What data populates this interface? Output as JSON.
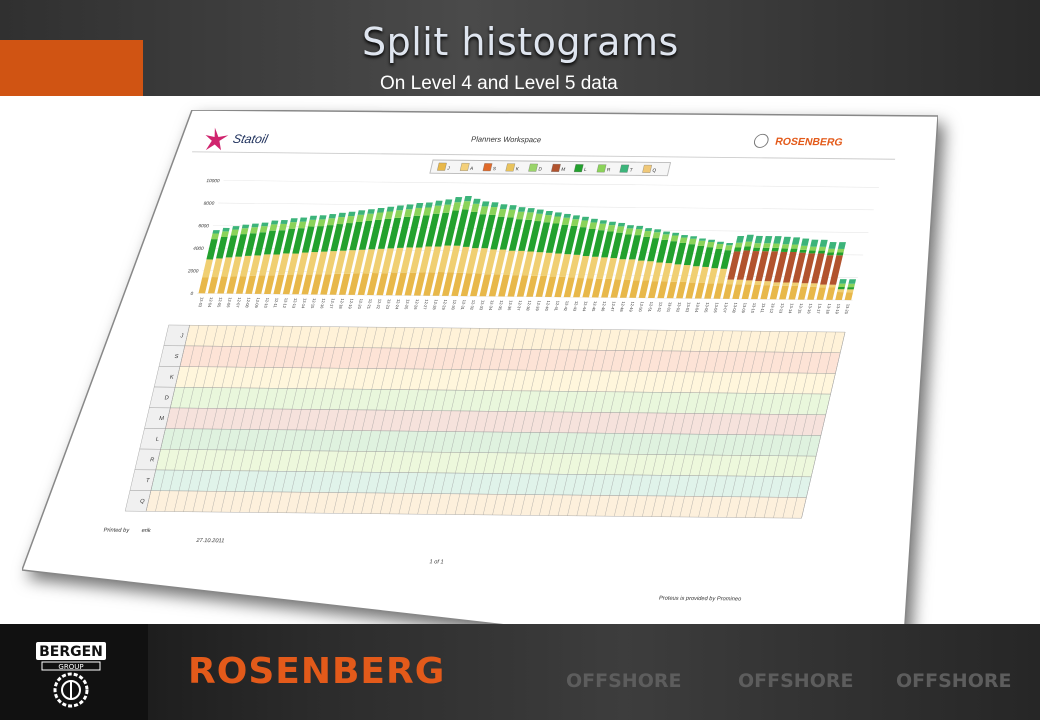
{
  "slide": {
    "title": "Split histograms",
    "subtitle": "On Level 4 and Level 5 data"
  },
  "sheet": {
    "company_left": "Statoil",
    "header_title": "Planners Workspace",
    "company_right": "ROSENBERG",
    "legend": [
      {
        "key": "J",
        "color": "#e8b84a"
      },
      {
        "key": "A",
        "color": "#f4d07a"
      },
      {
        "key": "S",
        "color": "#e06a2a"
      },
      {
        "key": "K",
        "color": "#e9c35c"
      },
      {
        "key": "D",
        "color": "#9ad46a"
      },
      {
        "key": "M",
        "color": "#b2532e"
      },
      {
        "key": "L",
        "color": "#23a12e"
      },
      {
        "key": "R",
        "color": "#8bd35a"
      },
      {
        "key": "T",
        "color": "#3cb47a"
      },
      {
        "key": "Q",
        "color": "#f0c878"
      }
    ],
    "y_ticks": [
      "10000",
      "8000",
      "6000",
      "4000",
      "2000",
      "0"
    ],
    "row_labels": [
      "J",
      "S",
      "K",
      "D",
      "M",
      "L",
      "R",
      "T",
      "Q"
    ],
    "printed_by_label": "Printed by",
    "printed_by_value": "erik",
    "print_date": "27.10.2011",
    "page_label": "1 of 1",
    "footer_note": "Proteus is provided by Promineo"
  },
  "chart_data": {
    "type": "bar",
    "stacked": true,
    "title": "",
    "xlabel": "",
    "ylabel": "",
    "ylim": [
      0,
      10000
    ],
    "categories": [
      "12-03",
      "12-04",
      "12-05",
      "12-06",
      "12-07",
      "12-08",
      "12-09",
      "12-10",
      "12-11",
      "12-12",
      "12-13",
      "12-14",
      "12-15",
      "12-16",
      "12-17",
      "12-18",
      "12-19",
      "12-20",
      "12-21",
      "12-22",
      "12-23",
      "12-24",
      "12-25",
      "12-26",
      "12-27",
      "12-28",
      "12-29",
      "12-30",
      "12-31",
      "12-32",
      "12-33",
      "12-34",
      "12-35",
      "12-36",
      "12-37",
      "12-38",
      "12-39",
      "12-40",
      "12-41",
      "12-42",
      "12-43",
      "12-44",
      "12-45",
      "12-46",
      "12-47",
      "12-48",
      "12-49",
      "12-50",
      "12-51",
      "12-52",
      "13-01",
      "13-02",
      "13-03",
      "13-04",
      "13-05",
      "13-06",
      "13-07",
      "13-08",
      "13-09",
      "13-10",
      "13-11",
      "13-12",
      "13-13",
      "13-14",
      "13-15",
      "13-16",
      "13-17",
      "13-18",
      "13-19",
      "13-20"
    ],
    "series": [
      {
        "name": "J",
        "color": "#e8b84a",
        "values": [
          1400,
          1450,
          1500,
          1520,
          1550,
          1600,
          1650,
          1650,
          1700,
          1700,
          1750,
          1750,
          1800,
          1800,
          1850,
          1850,
          1900,
          1900,
          1950,
          1950,
          2000,
          2000,
          2000,
          2050,
          2050,
          2100,
          2100,
          2050,
          2000,
          2000,
          1950,
          1950,
          1900,
          1900,
          1900,
          1850,
          1850,
          1800,
          1800,
          1750,
          1700,
          1700,
          1650,
          1650,
          1600,
          1600,
          1550,
          1550,
          1500,
          1500,
          1450,
          1450,
          1400,
          1400,
          1350,
          1350,
          1300,
          1300,
          1300,
          1250,
          1250,
          1200,
          1200,
          1200,
          1150,
          1150,
          1100,
          1100,
          700,
          700
        ]
      },
      {
        "name": "K",
        "color": "#f0cf72",
        "values": [
          1600,
          1650,
          1700,
          1750,
          1800,
          1800,
          1850,
          1850,
          1900,
          1900,
          1950,
          2000,
          2000,
          2050,
          2050,
          2100,
          2100,
          2150,
          2150,
          2200,
          2200,
          2250,
          2250,
          2300,
          2300,
          2350,
          2350,
          2300,
          2250,
          2250,
          2200,
          2200,
          2150,
          2150,
          2100,
          2100,
          2050,
          2050,
          2000,
          2000,
          1950,
          1900,
          1900,
          1850,
          1800,
          1800,
          1750,
          1700,
          1650,
          1600,
          1550,
          1500,
          1450,
          1400,
          1350,
          1300,
          400,
          400,
          350,
          350,
          350,
          300,
          300,
          300,
          300,
          300,
          250,
          250,
          250,
          250
        ]
      },
      {
        "name": "M",
        "color": "#b2532e",
        "values": [
          0,
          0,
          0,
          0,
          0,
          0,
          0,
          0,
          0,
          0,
          0,
          0,
          0,
          0,
          0,
          0,
          0,
          0,
          0,
          0,
          0,
          0,
          0,
          0,
          0,
          0,
          0,
          0,
          0,
          0,
          0,
          0,
          0,
          0,
          0,
          0,
          0,
          0,
          0,
          0,
          0,
          0,
          0,
          0,
          0,
          0,
          0,
          0,
          0,
          0,
          0,
          0,
          0,
          0,
          0,
          0,
          2500,
          2600,
          2600,
          2650,
          2650,
          2700,
          2700,
          2650,
          2650,
          2650,
          2600,
          2600,
          0,
          0
        ]
      },
      {
        "name": "L",
        "color": "#23a12e",
        "values": [
          1800,
          1900,
          1950,
          2000,
          2000,
          2050,
          2100,
          2150,
          2200,
          2250,
          2300,
          2300,
          2350,
          2400,
          2450,
          2500,
          2550,
          2600,
          2650,
          2700,
          2750,
          2800,
          2850,
          2900,
          3000,
          3100,
          3200,
          3100,
          3000,
          2950,
          2900,
          2850,
          2800,
          2750,
          2700,
          2650,
          2600,
          2550,
          2500,
          2450,
          2400,
          2350,
          2300,
          2250,
          2200,
          2150,
          2100,
          2050,
          2000,
          1950,
          1900,
          1850,
          1800,
          1750,
          1700,
          1650,
          350,
          350,
          300,
          300,
          300,
          300,
          300,
          250,
          250,
          250,
          250,
          250,
          200,
          200
        ]
      },
      {
        "name": "R",
        "color": "#8bd35a",
        "values": [
          500,
          500,
          520,
          520,
          540,
          540,
          560,
          560,
          580,
          580,
          600,
          600,
          600,
          620,
          620,
          640,
          640,
          660,
          660,
          680,
          680,
          700,
          700,
          720,
          720,
          740,
          740,
          720,
          700,
          700,
          680,
          680,
          660,
          660,
          640,
          640,
          620,
          620,
          600,
          600,
          580,
          580,
          560,
          560,
          540,
          540,
          520,
          520,
          500,
          500,
          480,
          480,
          460,
          460,
          440,
          440,
          420,
          420,
          400,
          400,
          380,
          380,
          360,
          360,
          340,
          340,
          320,
          320,
          300,
          300
        ]
      },
      {
        "name": "Q",
        "color": "#3cb47a",
        "values": [
          300,
          300,
          300,
          320,
          320,
          320,
          340,
          340,
          340,
          360,
          360,
          360,
          380,
          380,
          380,
          400,
          400,
          400,
          420,
          420,
          420,
          440,
          440,
          440,
          460,
          460,
          460,
          440,
          440,
          420,
          420,
          400,
          400,
          380,
          380,
          360,
          360,
          340,
          340,
          320,
          320,
          300,
          300,
          300,
          280,
          280,
          260,
          260,
          240,
          240,
          220,
          220,
          200,
          200,
          200,
          200,
          600,
          620,
          640,
          640,
          660,
          660,
          640,
          640,
          620,
          620,
          600,
          600,
          400,
          400
        ]
      }
    ]
  }
}
